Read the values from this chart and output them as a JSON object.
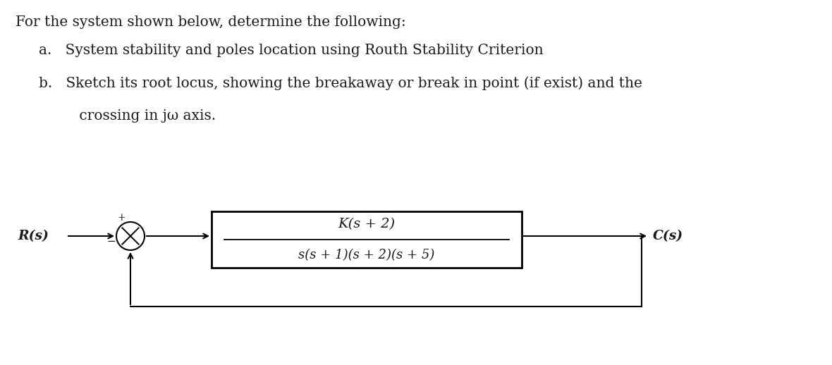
{
  "bg_color": "#ffffff",
  "text_color": "#1a1a1a",
  "main_text": "For the system shown below, determine the following:",
  "item_a": "a.   System stability and poles location using Routh Stability Criterion",
  "item_b_line1": "b.   Sketch its root locus, showing the breakaway or break in point (if exist) and the",
  "item_b_line2": "         crossing in jω axis.",
  "transfer_num": "K(s + 2)",
  "transfer_den": "s(s + 1)(s + 2)(s + 5)",
  "label_R": "R(s)",
  "label_C": "C(s)",
  "plus_sign": "+",
  "minus_sign": "−",
  "font_size_main": 14.5,
  "font_size_labels": 13.5,
  "font_size_tf_num": 14,
  "font_size_tf_den": 13
}
